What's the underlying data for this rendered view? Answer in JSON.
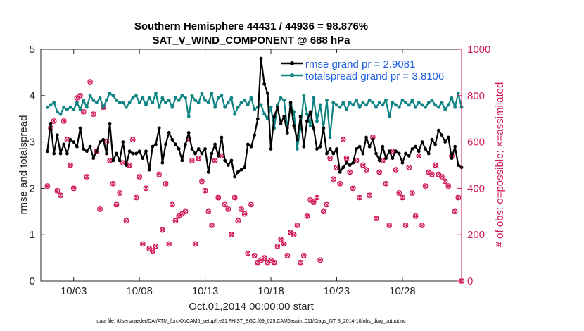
{
  "title_line1": "Southern Hemisphere 44431 / 44936 = 98.876%",
  "title_line2": "SAT_V_WIND_COMPONENT @ 688 hPa",
  "footnote": "data file: /Users/raeder/DAI/ATM_forcXX/CAM6_setup/f.e21.FHIST_BGC.f09_025.CAM6assim.011/Diags_NTrS_2014-10/obs_diag_output.nc",
  "colors": {
    "rmse": "#000000",
    "spread": "#0e8383",
    "obs": "#d1185a",
    "legend_text": "#1f5fe0"
  },
  "chart_data": {
    "type": "line",
    "xlabel": "Oct.01,2014 00:00:00 start",
    "ylabel": "rmse and totalspread",
    "y2label": "# of obs: o=possible; ×=assimilated",
    "xlim": [
      0.5,
      32.5
    ],
    "ylim": [
      0,
      5
    ],
    "y2lim": [
      0,
      1000
    ],
    "x_ticks": [
      3,
      8,
      13,
      18,
      23,
      28
    ],
    "x_tick_labels": [
      "10/03",
      "10/08",
      "10/13",
      "10/18",
      "10/23",
      "10/28"
    ],
    "y_ticks": [
      0,
      1,
      2,
      3,
      4,
      5
    ],
    "y2_ticks": [
      0,
      200,
      400,
      600,
      800,
      1000
    ],
    "legend": [
      "rmse grand pr = 2.9081",
      "totalspread grand pr = 3.8106"
    ],
    "legend_position": "top-right",
    "grid": false,
    "rmse": [
      [
        1.0,
        2.8
      ],
      [
        1.25,
        3.4
      ],
      [
        1.5,
        2.75
      ],
      [
        1.75,
        3.15
      ],
      [
        2.0,
        2.75
      ],
      [
        2.25,
        2.95
      ],
      [
        2.5,
        2.75
      ],
      [
        2.75,
        3.05
      ],
      [
        3.0,
        3.0
      ],
      [
        3.25,
        2.9
      ],
      [
        3.5,
        3.3
      ],
      [
        3.75,
        2.85
      ],
      [
        4.0,
        2.8
      ],
      [
        4.25,
        2.9
      ],
      [
        4.5,
        2.65
      ],
      [
        4.75,
        2.8
      ],
      [
        5.0,
        3.0
      ],
      [
        5.25,
        3.05
      ],
      [
        5.5,
        2.75
      ],
      [
        5.75,
        3.4
      ],
      [
        6.0,
        2.6
      ],
      [
        6.25,
        2.75
      ],
      [
        6.5,
        2.6
      ],
      [
        6.75,
        3.0
      ],
      [
        7.0,
        2.5
      ],
      [
        7.25,
        2.8
      ],
      [
        7.5,
        2.75
      ],
      [
        7.75,
        2.75
      ],
      [
        8.0,
        2.8
      ],
      [
        8.25,
        2.65
      ],
      [
        8.5,
        2.8
      ],
      [
        8.75,
        2.4
      ],
      [
        9.0,
        2.9
      ],
      [
        9.25,
        2.95
      ],
      [
        9.5,
        3.3
      ],
      [
        9.75,
        2.55
      ],
      [
        10.0,
        2.95
      ],
      [
        10.25,
        3.2
      ],
      [
        10.5,
        3.05
      ],
      [
        10.75,
        2.95
      ],
      [
        11.0,
        2.85
      ],
      [
        11.25,
        2.6
      ],
      [
        11.5,
        2.95
      ],
      [
        11.75,
        3.2
      ],
      [
        12.0,
        2.85
      ],
      [
        12.25,
        2.75
      ],
      [
        12.5,
        2.85
      ],
      [
        12.75,
        2.75
      ],
      [
        13.0,
        2.85
      ],
      [
        13.25,
        2.35
      ],
      [
        13.5,
        2.75
      ],
      [
        13.75,
        2.95
      ],
      [
        14.0,
        2.7
      ],
      [
        14.25,
        3.1
      ],
      [
        14.5,
        2.6
      ],
      [
        14.75,
        2.5
      ],
      [
        15.0,
        2.6
      ],
      [
        15.25,
        2.25
      ],
      [
        15.5,
        2.35
      ],
      [
        15.75,
        2.4
      ],
      [
        16.0,
        2.45
      ],
      [
        16.25,
        2.95
      ],
      [
        16.5,
        2.9
      ],
      [
        16.75,
        3.15
      ],
      [
        17.0,
        3.5
      ],
      [
        17.25,
        4.8
      ],
      [
        17.5,
        4.25
      ],
      [
        17.75,
        4.05
      ],
      [
        18.0,
        2.85
      ],
      [
        18.25,
        3.55
      ],
      [
        18.5,
        3.75
      ],
      [
        18.75,
        3.4
      ],
      [
        19.0,
        3.55
      ],
      [
        19.25,
        3.2
      ],
      [
        19.5,
        3.85
      ],
      [
        19.75,
        3.35
      ],
      [
        20.0,
        3.05
      ],
      [
        20.25,
        3.55
      ],
      [
        20.5,
        2.9
      ],
      [
        20.75,
        3.45
      ],
      [
        21.0,
        3.65
      ],
      [
        21.25,
        3.3
      ],
      [
        21.5,
        2.85
      ],
      [
        21.75,
        2.9
      ],
      [
        22.0,
        3.3
      ],
      [
        22.25,
        2.75
      ],
      [
        22.5,
        2.85
      ],
      [
        22.75,
        2.75
      ],
      [
        23.0,
        2.85
      ],
      [
        23.25,
        2.35
      ],
      [
        23.5,
        2.45
      ],
      [
        23.75,
        2.55
      ],
      [
        24.0,
        2.5
      ],
      [
        24.25,
        2.55
      ],
      [
        24.5,
        2.85
      ],
      [
        24.75,
        2.9
      ],
      [
        25.0,
        2.75
      ],
      [
        25.25,
        3.1
      ],
      [
        25.5,
        2.9
      ],
      [
        25.75,
        3.05
      ],
      [
        26.0,
        2.75
      ],
      [
        26.25,
        2.6
      ],
      [
        26.5,
        2.9
      ],
      [
        26.75,
        2.65
      ],
      [
        27.0,
        2.8
      ],
      [
        27.25,
        2.65
      ],
      [
        27.5,
        2.8
      ],
      [
        27.75,
        2.75
      ],
      [
        28.0,
        2.55
      ],
      [
        28.25,
        2.75
      ],
      [
        28.5,
        2.7
      ],
      [
        28.75,
        2.85
      ],
      [
        29.0,
        2.9
      ],
      [
        29.25,
        2.8
      ],
      [
        29.5,
        3.0
      ],
      [
        29.75,
        2.85
      ],
      [
        30.0,
        2.75
      ],
      [
        30.25,
        3.05
      ],
      [
        30.5,
        2.95
      ],
      [
        30.75,
        3.25
      ],
      [
        31.0,
        3.15
      ],
      [
        31.25,
        3.0
      ],
      [
        31.5,
        3.1
      ],
      [
        31.75,
        2.65
      ],
      [
        32.0,
        2.9
      ],
      [
        32.25,
        2.5
      ],
      [
        32.5,
        2.45
      ]
    ],
    "totalspread": [
      [
        1.0,
        3.75
      ],
      [
        1.25,
        3.8
      ],
      [
        1.5,
        3.85
      ],
      [
        1.75,
        3.65
      ],
      [
        2.0,
        3.6
      ],
      [
        2.25,
        3.75
      ],
      [
        2.5,
        3.7
      ],
      [
        2.75,
        3.75
      ],
      [
        3.0,
        3.7
      ],
      [
        3.25,
        3.85
      ],
      [
        3.5,
        3.7
      ],
      [
        3.75,
        3.9
      ],
      [
        4.0,
        3.75
      ],
      [
        4.25,
        4.0
      ],
      [
        4.5,
        3.9
      ],
      [
        4.75,
        3.85
      ],
      [
        5.0,
        3.95
      ],
      [
        5.25,
        3.75
      ],
      [
        5.5,
        3.9
      ],
      [
        5.75,
        4.05
      ],
      [
        6.0,
        4.0
      ],
      [
        6.25,
        3.9
      ],
      [
        6.5,
        3.85
      ],
      [
        6.75,
        3.85
      ],
      [
        7.0,
        3.75
      ],
      [
        7.25,
        3.85
      ],
      [
        7.5,
        3.95
      ],
      [
        7.75,
        4.0
      ],
      [
        8.0,
        3.85
      ],
      [
        8.25,
        3.95
      ],
      [
        8.5,
        3.8
      ],
      [
        8.75,
        3.95
      ],
      [
        9.0,
        3.85
      ],
      [
        9.25,
        4.05
      ],
      [
        9.5,
        3.75
      ],
      [
        9.75,
        3.95
      ],
      [
        10.0,
        3.85
      ],
      [
        10.25,
        3.9
      ],
      [
        10.5,
        3.75
      ],
      [
        10.75,
        3.95
      ],
      [
        11.0,
        3.9
      ],
      [
        11.25,
        4.0
      ],
      [
        11.5,
        3.95
      ],
      [
        11.75,
        3.55
      ],
      [
        12.0,
        4.0
      ],
      [
        12.25,
        3.9
      ],
      [
        12.5,
        3.85
      ],
      [
        12.75,
        4.05
      ],
      [
        13.0,
        3.9
      ],
      [
        13.25,
        3.85
      ],
      [
        13.5,
        4.05
      ],
      [
        13.75,
        3.75
      ],
      [
        14.0,
        3.95
      ],
      [
        14.25,
        4.0
      ],
      [
        14.5,
        3.75
      ],
      [
        14.75,
        3.85
      ],
      [
        15.0,
        3.95
      ],
      [
        15.25,
        3.6
      ],
      [
        15.5,
        3.75
      ],
      [
        15.75,
        3.85
      ],
      [
        16.0,
        3.9
      ],
      [
        16.25,
        3.8
      ],
      [
        16.5,
        3.95
      ],
      [
        16.75,
        3.7
      ],
      [
        17.0,
        3.75
      ],
      [
        17.25,
        3.8
      ],
      [
        17.5,
        3.6
      ],
      [
        17.75,
        3.5
      ],
      [
        18.0,
        3.75
      ],
      [
        18.25,
        3.3
      ],
      [
        18.5,
        3.8
      ],
      [
        18.75,
        3.95
      ],
      [
        19.0,
        3.9
      ],
      [
        19.25,
        3.3
      ],
      [
        19.5,
        3.8
      ],
      [
        19.75,
        3.65
      ],
      [
        20.0,
        2.85
      ],
      [
        20.25,
        3.3
      ],
      [
        20.5,
        4.0
      ],
      [
        20.75,
        3.6
      ],
      [
        21.0,
        3.35
      ],
      [
        21.25,
        3.95
      ],
      [
        21.5,
        3.45
      ],
      [
        21.75,
        3.8
      ],
      [
        22.0,
        3.3
      ],
      [
        22.25,
        3.9
      ],
      [
        22.5,
        3.1
      ],
      [
        22.75,
        3.85
      ],
      [
        23.0,
        3.8
      ],
      [
        23.25,
        3.75
      ],
      [
        23.5,
        3.85
      ],
      [
        23.75,
        3.7
      ],
      [
        24.0,
        3.85
      ],
      [
        24.25,
        3.8
      ],
      [
        24.5,
        3.9
      ],
      [
        24.75,
        3.75
      ],
      [
        25.0,
        3.85
      ],
      [
        25.25,
        3.8
      ],
      [
        25.5,
        3.9
      ],
      [
        25.75,
        3.85
      ],
      [
        26.0,
        3.75
      ],
      [
        26.25,
        3.85
      ],
      [
        26.5,
        3.8
      ],
      [
        26.75,
        3.9
      ],
      [
        27.0,
        3.55
      ],
      [
        27.25,
        3.85
      ],
      [
        27.5,
        3.8
      ],
      [
        27.75,
        3.75
      ],
      [
        28.0,
        3.9
      ],
      [
        28.25,
        3.85
      ],
      [
        28.5,
        3.8
      ],
      [
        28.75,
        3.9
      ],
      [
        29.0,
        3.75
      ],
      [
        29.25,
        3.85
      ],
      [
        29.5,
        3.8
      ],
      [
        29.75,
        3.75
      ],
      [
        30.0,
        3.85
      ],
      [
        30.25,
        3.9
      ],
      [
        30.5,
        3.8
      ],
      [
        30.75,
        3.75
      ],
      [
        31.0,
        3.85
      ],
      [
        31.25,
        3.7
      ],
      [
        31.5,
        3.8
      ],
      [
        31.75,
        3.95
      ],
      [
        32.0,
        3.75
      ],
      [
        32.25,
        4.05
      ],
      [
        32.5,
        3.75
      ]
    ],
    "obs_count": [
      [
        1.0,
        410
      ],
      [
        1.25,
        660
      ],
      [
        1.5,
        690
      ],
      [
        1.75,
        390
      ],
      [
        2.0,
        370
      ],
      [
        2.25,
        690
      ],
      [
        2.5,
        610
      ],
      [
        2.75,
        500
      ],
      [
        3.0,
        400
      ],
      [
        3.25,
        790
      ],
      [
        3.5,
        800
      ],
      [
        3.75,
        730
      ],
      [
        4.0,
        450
      ],
      [
        4.25,
        860
      ],
      [
        4.5,
        720
      ],
      [
        4.75,
        560
      ],
      [
        5.0,
        310
      ],
      [
        5.25,
        750
      ],
      [
        5.5,
        600
      ],
      [
        5.75,
        520
      ],
      [
        6.0,
        420
      ],
      [
        6.25,
        330
      ],
      [
        6.5,
        380
      ],
      [
        6.75,
        510
      ],
      [
        7.0,
        260
      ],
      [
        7.25,
        500
      ],
      [
        7.5,
        610
      ],
      [
        7.75,
        360
      ],
      [
        8.0,
        450
      ],
      [
        8.25,
        160
      ],
      [
        8.5,
        400
      ],
      [
        8.75,
        140
      ],
      [
        9.0,
        130
      ],
      [
        9.25,
        150
      ],
      [
        9.5,
        460
      ],
      [
        9.75,
        220
      ],
      [
        10.0,
        420
      ],
      [
        10.25,
        160
      ],
      [
        10.5,
        330
      ],
      [
        10.75,
        260
      ],
      [
        11.0,
        280
      ],
      [
        11.25,
        290
      ],
      [
        11.5,
        300
      ],
      [
        11.75,
        610
      ],
      [
        12.0,
        520
      ],
      [
        12.25,
        160
      ],
      [
        12.5,
        530
      ],
      [
        12.75,
        430
      ],
      [
        13.0,
        390
      ],
      [
        13.25,
        300
      ],
      [
        13.5,
        240
      ],
      [
        13.75,
        520
      ],
      [
        14.0,
        360
      ],
      [
        14.25,
        540
      ],
      [
        14.5,
        330
      ],
      [
        14.75,
        310
      ],
      [
        15.0,
        200
      ],
      [
        15.25,
        360
      ],
      [
        15.5,
        260
      ],
      [
        15.75,
        310
      ],
      [
        16.0,
        290
      ],
      [
        16.25,
        120
      ],
      [
        16.5,
        330
      ],
      [
        16.75,
        110
      ],
      [
        17.0,
        80
      ],
      [
        17.25,
        90
      ],
      [
        17.5,
        100
      ],
      [
        17.75,
        80
      ],
      [
        18.0,
        90
      ],
      [
        18.25,
        80
      ],
      [
        18.5,
        150
      ],
      [
        18.75,
        180
      ],
      [
        19.0,
        160
      ],
      [
        19.25,
        110
      ],
      [
        19.5,
        210
      ],
      [
        19.75,
        200
      ],
      [
        20.0,
        240
      ],
      [
        20.25,
        80
      ],
      [
        20.5,
        110
      ],
      [
        20.75,
        280
      ],
      [
        21.0,
        350
      ],
      [
        21.25,
        340
      ],
      [
        21.5,
        360
      ],
      [
        21.75,
        90
      ],
      [
        22.0,
        300
      ],
      [
        22.25,
        330
      ],
      [
        22.5,
        530
      ],
      [
        22.75,
        440
      ],
      [
        23.0,
        490
      ],
      [
        23.25,
        420
      ],
      [
        23.5,
        610
      ],
      [
        23.75,
        530
      ],
      [
        24.0,
        470
      ],
      [
        24.25,
        400
      ],
      [
        24.5,
        520
      ],
      [
        24.75,
        360
      ],
      [
        25.0,
        500
      ],
      [
        25.25,
        480
      ],
      [
        25.5,
        370
      ],
      [
        25.75,
        620
      ],
      [
        26.0,
        270
      ],
      [
        26.25,
        470
      ],
      [
        26.5,
        520
      ],
      [
        26.75,
        420
      ],
      [
        27.0,
        240
      ],
      [
        27.25,
        560
      ],
      [
        27.5,
        480
      ],
      [
        27.75,
        380
      ],
      [
        28.0,
        360
      ],
      [
        28.25,
        240
      ],
      [
        28.5,
        490
      ],
      [
        28.75,
        380
      ],
      [
        29.0,
        280
      ],
      [
        29.25,
        540
      ],
      [
        29.5,
        240
      ],
      [
        29.75,
        410
      ],
      [
        30.0,
        470
      ],
      [
        30.25,
        460
      ],
      [
        30.5,
        500
      ],
      [
        30.75,
        460
      ],
      [
        31.0,
        450
      ],
      [
        31.25,
        430
      ],
      [
        31.5,
        410
      ],
      [
        31.75,
        540
      ],
      [
        32.0,
        300
      ],
      [
        32.25,
        360
      ],
      [
        32.5,
        0
      ]
    ]
  }
}
